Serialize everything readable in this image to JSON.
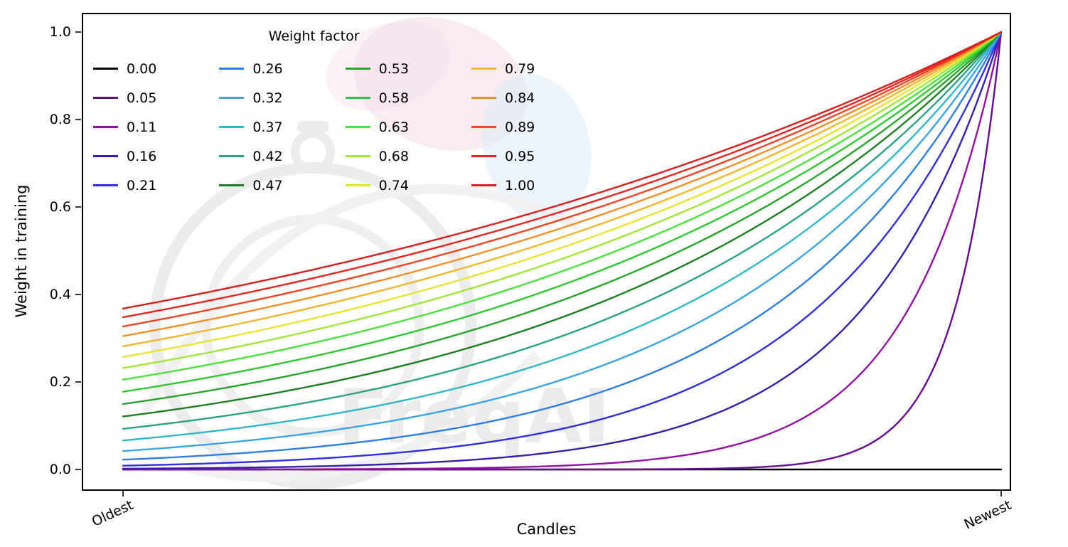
{
  "figure": {
    "background": "#ffffff",
    "watermark_text": "FreqAI"
  },
  "chart_data": {
    "type": "line",
    "title": "",
    "legend_title": "Weight factor",
    "xlabel": "Candles",
    "ylabel": "Weight in training",
    "x_tick_labels": [
      "Oldest",
      "Newest"
    ],
    "x_tick_positions": [
      0,
      1
    ],
    "y_ticks": [
      0,
      0.2,
      0.4,
      0.6,
      0.8,
      1.0
    ],
    "y_tick_labels": [
      "0.0",
      "0.2",
      "0.4",
      "0.6",
      "0.8",
      "1.0"
    ],
    "xlim": [
      0,
      1
    ],
    "ylim": [
      0,
      1
    ],
    "grid": false,
    "legend_position": "upper-left",
    "legend_columns": 4,
    "legend_rows": 5,
    "curve_formula": "weight(x) = exp(-(1 - x) / weight_factor) for x in [0,1]; weight_factor = 0 gives a flat line at 0",
    "series": [
      {
        "label": "0.00",
        "weight_factor": 0.0,
        "color": "#000000",
        "y_at_oldest": 0.0,
        "y_at_newest": 0.0
      },
      {
        "label": "0.05",
        "weight_factor": 0.052632,
        "color": "#660c91",
        "y_at_oldest": 0.0,
        "y_at_newest": 1.0
      },
      {
        "label": "0.11",
        "weight_factor": 0.105263,
        "color": "#8f13a0",
        "y_at_oldest": 0.0001,
        "y_at_newest": 1.0
      },
      {
        "label": "0.16",
        "weight_factor": 0.157895,
        "color": "#3a1dad",
        "y_at_oldest": 0.0018,
        "y_at_newest": 1.0
      },
      {
        "label": "0.21",
        "weight_factor": 0.210526,
        "color": "#2f2ee0",
        "y_at_oldest": 0.0087,
        "y_at_newest": 1.0
      },
      {
        "label": "0.26",
        "weight_factor": 0.263158,
        "color": "#2f7ee2",
        "y_at_oldest": 0.0224,
        "y_at_newest": 1.0
      },
      {
        "label": "0.32",
        "weight_factor": 0.315789,
        "color": "#3aa5e4",
        "y_at_oldest": 0.0421,
        "y_at_newest": 1.0
      },
      {
        "label": "0.37",
        "weight_factor": 0.368421,
        "color": "#30b8c4",
        "y_at_oldest": 0.0662,
        "y_at_newest": 1.0
      },
      {
        "label": "0.42",
        "weight_factor": 0.421053,
        "color": "#2ba382",
        "y_at_oldest": 0.093,
        "y_at_newest": 1.0
      },
      {
        "label": "0.47",
        "weight_factor": 0.473684,
        "color": "#1e7e23",
        "y_at_oldest": 0.1211,
        "y_at_newest": 1.0
      },
      {
        "label": "0.53",
        "weight_factor": 0.526316,
        "color": "#27a42a",
        "y_at_oldest": 0.1496,
        "y_at_newest": 1.0
      },
      {
        "label": "0.58",
        "weight_factor": 0.578947,
        "color": "#2fc831",
        "y_at_oldest": 0.1778,
        "y_at_newest": 1.0
      },
      {
        "label": "0.63",
        "weight_factor": 0.631579,
        "color": "#4ce23e",
        "y_at_oldest": 0.2053,
        "y_at_newest": 1.0
      },
      {
        "label": "0.68",
        "weight_factor": 0.684211,
        "color": "#a2e637",
        "y_at_oldest": 0.2318,
        "y_at_newest": 1.0
      },
      {
        "label": "0.74",
        "weight_factor": 0.736842,
        "color": "#e9e430",
        "y_at_oldest": 0.2574,
        "y_at_newest": 1.0
      },
      {
        "label": "0.79",
        "weight_factor": 0.789474,
        "color": "#f4b52c",
        "y_at_oldest": 0.2817,
        "y_at_newest": 1.0
      },
      {
        "label": "0.84",
        "weight_factor": 0.842105,
        "color": "#f58e28",
        "y_at_oldest": 0.305,
        "y_at_newest": 1.0
      },
      {
        "label": "0.89",
        "weight_factor": 0.894737,
        "color": "#ef4323",
        "y_at_oldest": 0.327,
        "y_at_newest": 1.0
      },
      {
        "label": "0.95",
        "weight_factor": 0.947368,
        "color": "#e62420",
        "y_at_oldest": 0.348,
        "y_at_newest": 1.0
      },
      {
        "label": "1.00",
        "weight_factor": 1.0,
        "color": "#d6201f",
        "y_at_oldest": 0.3679,
        "y_at_newest": 1.0
      }
    ]
  }
}
